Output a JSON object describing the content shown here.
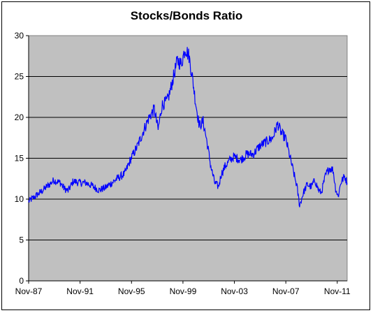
{
  "chart_data": {
    "type": "line",
    "title": "Stocks/Bonds Ratio",
    "xlabel": "",
    "ylabel": "",
    "ylim": [
      0,
      30
    ],
    "yticks": [
      0,
      5,
      10,
      15,
      20,
      25,
      30
    ],
    "xticks": [
      "Nov-87",
      "Nov-91",
      "Nov-95",
      "Nov-99",
      "Nov-03",
      "Nov-07",
      "Nov-11"
    ],
    "xlim": [
      1987.83,
      2012.6
    ],
    "grid": true,
    "legend": "none",
    "plot_background": "#c0c0c0",
    "line_color": "#0000ff",
    "series": [
      {
        "x": [
          1987.83,
          1988.3,
          1988.8,
          1989.3,
          1989.8,
          1990.3,
          1990.6,
          1990.9,
          1991.3,
          1991.8,
          1992.3,
          1992.8,
          1993.3,
          1993.8,
          1994.3,
          1994.8,
          1995.3,
          1995.8,
          1996.3,
          1996.8,
          1997.2,
          1997.6,
          1997.9,
          1998.2,
          1998.6,
          1998.8,
          1999.1,
          1999.4,
          1999.7,
          2000.0,
          2000.3,
          2000.6,
          2000.8,
          2001.1,
          2001.4,
          2001.7,
          2002.0,
          2002.3,
          2002.6,
          2002.8,
          2003.1,
          2003.5,
          2003.8,
          2004.3,
          2004.8,
          2005.3,
          2005.8,
          2006.3,
          2006.8,
          2007.2,
          2007.5,
          2007.8,
          2008.1,
          2008.4,
          2008.7,
          2008.9,
          2009.2,
          2009.5,
          2009.8,
          2010.1,
          2010.4,
          2010.6,
          2010.9,
          2011.2,
          2011.5,
          2011.7,
          2011.9,
          2012.1,
          2012.4,
          2012.6
        ],
        "values": [
          9.7,
          10.3,
          10.9,
          11.6,
          12.3,
          12.0,
          11.3,
          11.0,
          12.2,
          12.0,
          12.0,
          11.6,
          11.1,
          11.4,
          12.0,
          12.6,
          13.1,
          15.0,
          16.5,
          18.5,
          20.0,
          21.0,
          18.5,
          21.5,
          22.0,
          23.0,
          25.0,
          27.0,
          26.5,
          28.5,
          27.5,
          24.5,
          22.0,
          19.0,
          19.5,
          17.0,
          14.0,
          12.0,
          11.5,
          13.0,
          14.0,
          14.8,
          15.2,
          14.8,
          15.5,
          15.5,
          16.5,
          17.0,
          17.5,
          19.2,
          18.0,
          17.5,
          15.5,
          13.5,
          11.5,
          9.2,
          10.8,
          11.8,
          11.5,
          12.3,
          11.0,
          10.8,
          12.8,
          13.8,
          13.6,
          11.3,
          10.3,
          12.0,
          12.8,
          12.0
        ]
      }
    ]
  }
}
